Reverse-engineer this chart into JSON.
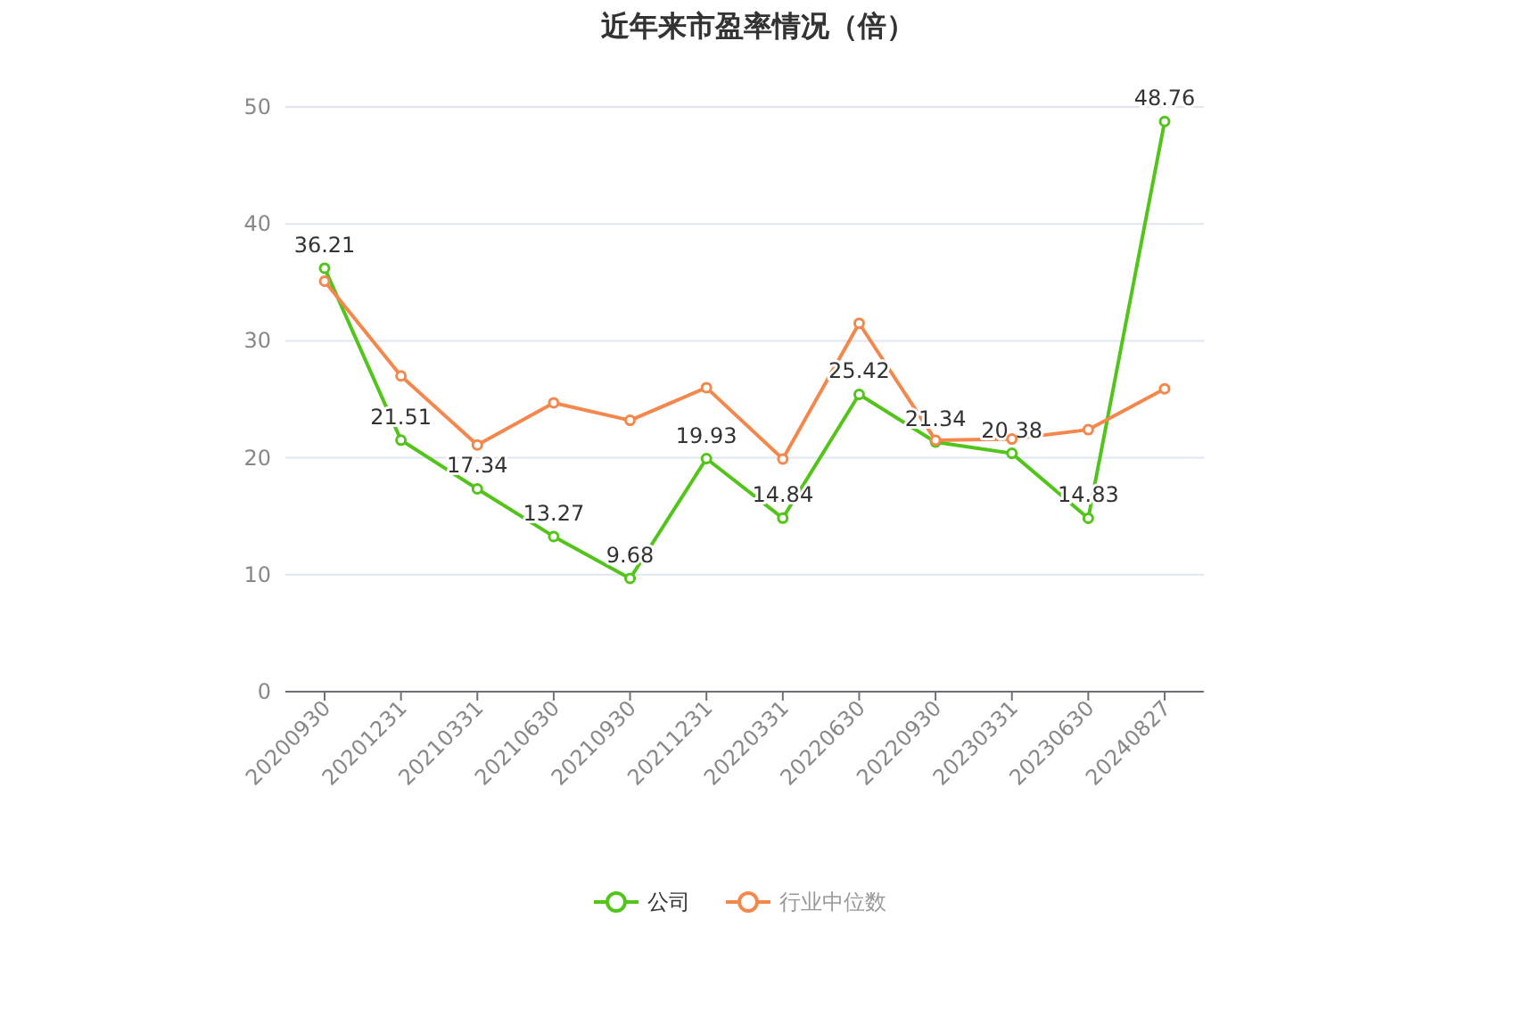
{
  "chart_data": {
    "type": "line",
    "title": "近年来市盈率情况（倍）",
    "categories": [
      "20200930",
      "20201231",
      "20210331",
      "20210630",
      "20210930",
      "20211231",
      "20220331",
      "20220630",
      "20220930",
      "20230331",
      "20230630",
      "20240827"
    ],
    "series": [
      {
        "name": "公司",
        "color": "#52c41a",
        "values": [
          36.21,
          21.51,
          17.34,
          13.27,
          9.68,
          19.93,
          14.84,
          25.42,
          21.34,
          20.38,
          14.83,
          48.76
        ],
        "value_labels": [
          "36.21",
          "21.51",
          "17.34",
          "13.27",
          "9.68",
          "19.93",
          "14.84",
          "25.42",
          "21.34",
          "20.38",
          "14.83",
          "48.76"
        ]
      },
      {
        "name": "行业中位数",
        "color": "#f4874b",
        "values": [
          35.1,
          27.0,
          21.1,
          24.7,
          23.2,
          26.0,
          19.9,
          31.5,
          21.5,
          21.6,
          22.4,
          25.9
        ]
      }
    ],
    "ylim": [
      0,
      50
    ],
    "yticks": [
      0,
      10,
      20,
      30,
      40,
      50
    ],
    "grid": "y",
    "legend": "bottom",
    "marker": "circle",
    "line_style": "solid"
  }
}
